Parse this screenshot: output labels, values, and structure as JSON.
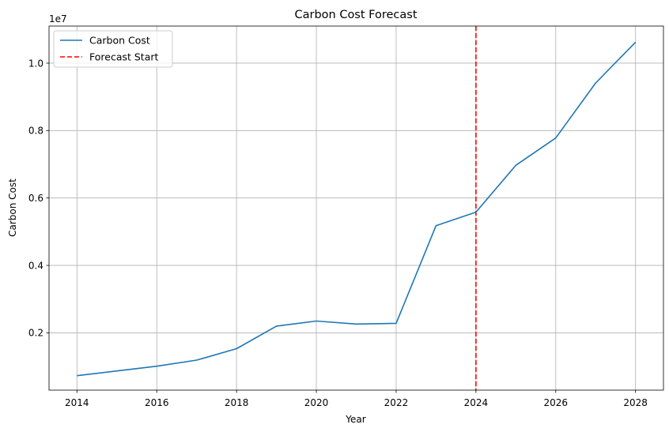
{
  "chart_data": {
    "type": "line",
    "title": "Carbon Cost Forecast",
    "xlabel": "Year",
    "ylabel": "Carbon Cost",
    "y_offset_label": "1e7",
    "x_ticks": [
      "2014",
      "2016",
      "2018",
      "2020",
      "2022",
      "2024",
      "2026",
      "2028"
    ],
    "y_ticks": [
      "0.2",
      "0.4",
      "0.6",
      "0.8",
      "1.0"
    ],
    "xlim": [
      2013.3,
      2028.7
    ],
    "ylim": [
      0.03,
      1.11
    ],
    "grid": true,
    "legend_placement": "top-left",
    "series": [
      {
        "name": "Carbon Cost",
        "color": "#1f77b4",
        "x": [
          2014,
          2015,
          2016,
          2017,
          2018,
          2019,
          2020,
          2021,
          2022,
          2023,
          2024,
          2025,
          2026,
          2027,
          2028
        ],
        "y": [
          0.073,
          0.087,
          0.101,
          0.119,
          0.153,
          0.22,
          0.235,
          0.226,
          0.228,
          0.518,
          0.558,
          0.697,
          0.778,
          0.941,
          1.062
        ]
      }
    ],
    "reference_lines": [
      {
        "name": "Forecast Start",
        "x": 2024,
        "color": "#ff0000",
        "style": "dashed"
      }
    ]
  }
}
